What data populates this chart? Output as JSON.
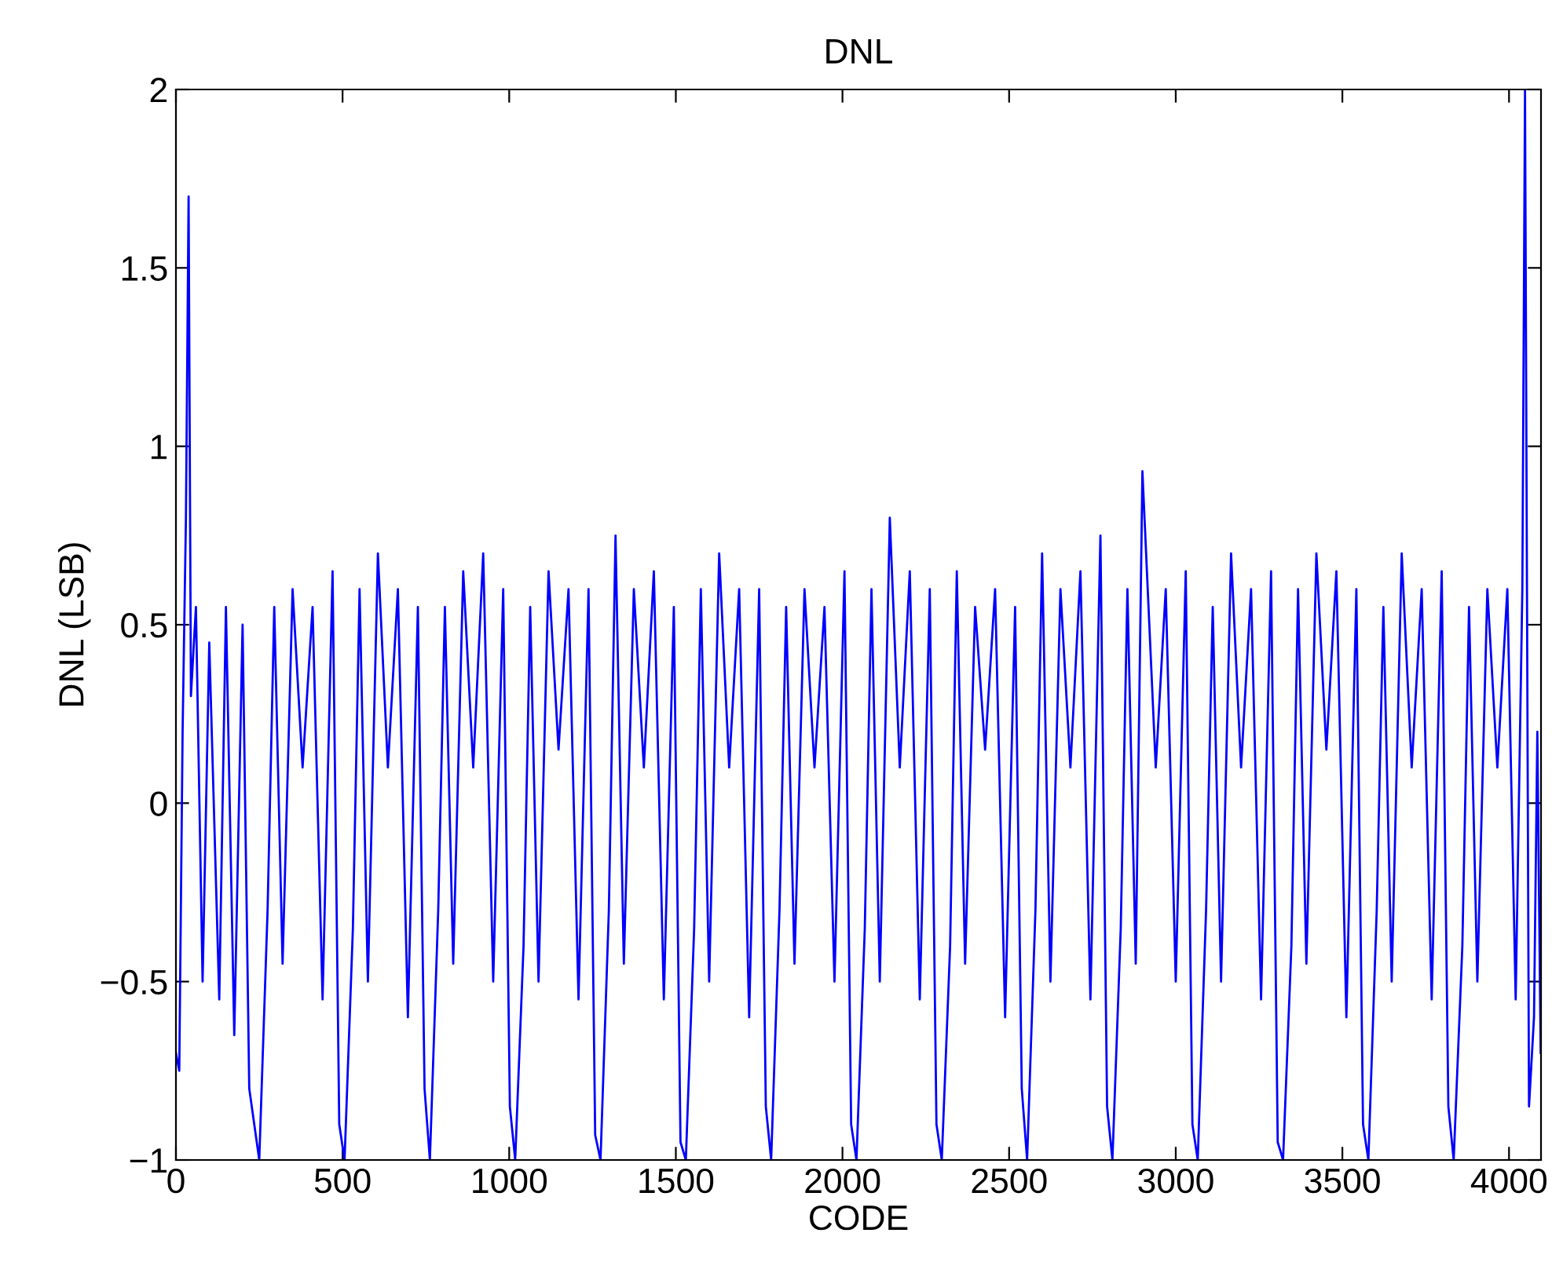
{
  "chart_data": {
    "type": "line",
    "title": "DNL",
    "xlabel": "CODE",
    "ylabel": "DNL (LSB)",
    "xlim": [
      0,
      4096
    ],
    "xticks": [
      0,
      500,
      1000,
      1500,
      2000,
      2500,
      3000,
      3500,
      4000
    ],
    "ylim": [
      -1,
      2
    ],
    "yticks": [
      {
        "value": -1,
        "label": "−1"
      },
      {
        "value": -0.5,
        "label": "−0.5"
      },
      0,
      0.5,
      1,
      1.5,
      2
    ],
    "grid": false,
    "marker": "none",
    "line_style": "solid",
    "series": [
      {
        "color": "#0000ff",
        "x": [
          0,
          10,
          20,
          30,
          38,
          45,
          60,
          80,
          100,
          130,
          150,
          175,
          200,
          220,
          250,
          275,
          295,
          320,
          350,
          380,
          410,
          440,
          470,
          490,
          506,
          531,
          551,
          576,
          606,
          636,
          666,
          696,
          726,
          746,
          762,
          787,
          807,
          832,
          862,
          892,
          922,
          952,
          982,
          1002,
          1018,
          1043,
          1063,
          1088,
          1118,
          1148,
          1178,
          1208,
          1238,
          1258,
          1274,
          1299,
          1319,
          1344,
          1374,
          1404,
          1434,
          1464,
          1494,
          1514,
          1530,
          1555,
          1575,
          1600,
          1630,
          1660,
          1690,
          1720,
          1750,
          1770,
          1786,
          1811,
          1831,
          1856,
          1886,
          1916,
          1946,
          1976,
          2006,
          2026,
          2042,
          2067,
          2087,
          2112,
          2142,
          2172,
          2202,
          2232,
          2262,
          2282,
          2298,
          2323,
          2343,
          2368,
          2398,
          2428,
          2458,
          2488,
          2518,
          2538,
          2554,
          2579,
          2599,
          2624,
          2654,
          2684,
          2714,
          2744,
          2774,
          2794,
          2810,
          2835,
          2855,
          2880,
          2900,
          2940,
          2970,
          3000,
          3030,
          3050,
          3066,
          3091,
          3111,
          3136,
          3166,
          3196,
          3226,
          3256,
          3286,
          3306,
          3322,
          3347,
          3367,
          3392,
          3422,
          3452,
          3482,
          3512,
          3542,
          3562,
          3578,
          3603,
          3623,
          3648,
          3678,
          3708,
          3738,
          3768,
          3798,
          3818,
          3834,
          3860,
          3880,
          3905,
          3935,
          3965,
          3995,
          4020,
          4040,
          4048,
          4060,
          4075,
          4085,
          4095
        ],
        "values": [
          -0.7,
          -0.75,
          0.2,
          0.8,
          1.7,
          0.3,
          0.55,
          -0.5,
          0.45,
          -0.55,
          0.55,
          -0.65,
          0.5,
          -0.8,
          -1,
          -0.3,
          0.55,
          -0.45,
          0.6,
          0.1,
          0.55,
          -0.55,
          0.65,
          -0.9,
          -1,
          -0.35,
          0.6,
          -0.5,
          0.7,
          0.1,
          0.6,
          -0.6,
          0.55,
          -0.8,
          -1,
          -0.3,
          0.55,
          -0.45,
          0.65,
          0.1,
          0.7,
          -0.5,
          0.6,
          -0.85,
          -1,
          -0.4,
          0.55,
          -0.5,
          0.65,
          0.15,
          0.6,
          -0.55,
          0.6,
          -0.93,
          -1,
          -0.3,
          0.75,
          -0.45,
          0.6,
          0.1,
          0.65,
          -0.55,
          0.55,
          -0.95,
          -1,
          -0.35,
          0.6,
          -0.5,
          0.7,
          0.1,
          0.6,
          -0.6,
          0.6,
          -0.85,
          -1,
          -0.3,
          0.55,
          -0.45,
          0.6,
          0.1,
          0.55,
          -0.5,
          0.65,
          -0.9,
          -1,
          -0.35,
          0.6,
          -0.5,
          0.8,
          0.1,
          0.65,
          -0.55,
          0.6,
          -0.9,
          -1,
          -0.4,
          0.65,
          -0.45,
          0.55,
          0.15,
          0.6,
          -0.6,
          0.55,
          -0.8,
          -1,
          -0.3,
          0.7,
          -0.5,
          0.6,
          0.1,
          0.65,
          -0.55,
          0.75,
          -0.85,
          -1,
          -0.35,
          0.6,
          -0.45,
          0.93,
          0.1,
          0.6,
          -0.5,
          0.65,
          -0.9,
          -1,
          -0.3,
          0.55,
          -0.5,
          0.7,
          0.1,
          0.6,
          -0.55,
          0.65,
          -0.95,
          -1,
          -0.4,
          0.6,
          -0.45,
          0.7,
          0.15,
          0.65,
          -0.6,
          0.6,
          -0.9,
          -1,
          -0.3,
          0.55,
          -0.5,
          0.7,
          0.1,
          0.6,
          -0.55,
          0.65,
          -0.85,
          -1,
          -0.4,
          0.55,
          -0.5,
          0.6,
          0.1,
          0.6,
          -0.55,
          0.6,
          2.0,
          -0.85,
          -0.6,
          0.2,
          -0.7
        ]
      }
    ]
  }
}
